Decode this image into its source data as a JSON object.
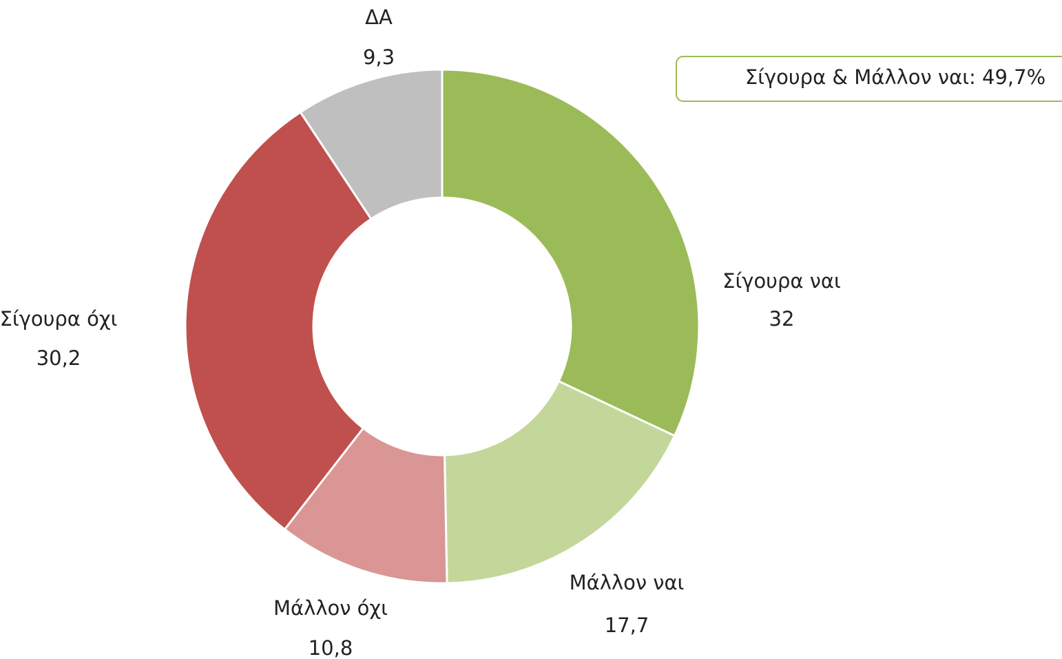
{
  "chart_data": {
    "type": "donut",
    "categories": [
      "Σίγουρα ναι",
      "Μάλλον ναι",
      "Μάλλον όχι",
      "Σίγουρα όχι",
      "ΔΑ"
    ],
    "values": [
      32,
      17.7,
      10.8,
      30.2,
      9.3
    ],
    "value_labels": [
      "32",
      "17,7",
      "10,8",
      "30,2",
      "9,3"
    ],
    "colors": [
      "#9bbb59",
      "#c4d79b",
      "#d99694",
      "#c0504d",
      "#bfbfbf"
    ],
    "annotation": "Σίγουρα & Μάλλον ναι: 49,7%"
  }
}
